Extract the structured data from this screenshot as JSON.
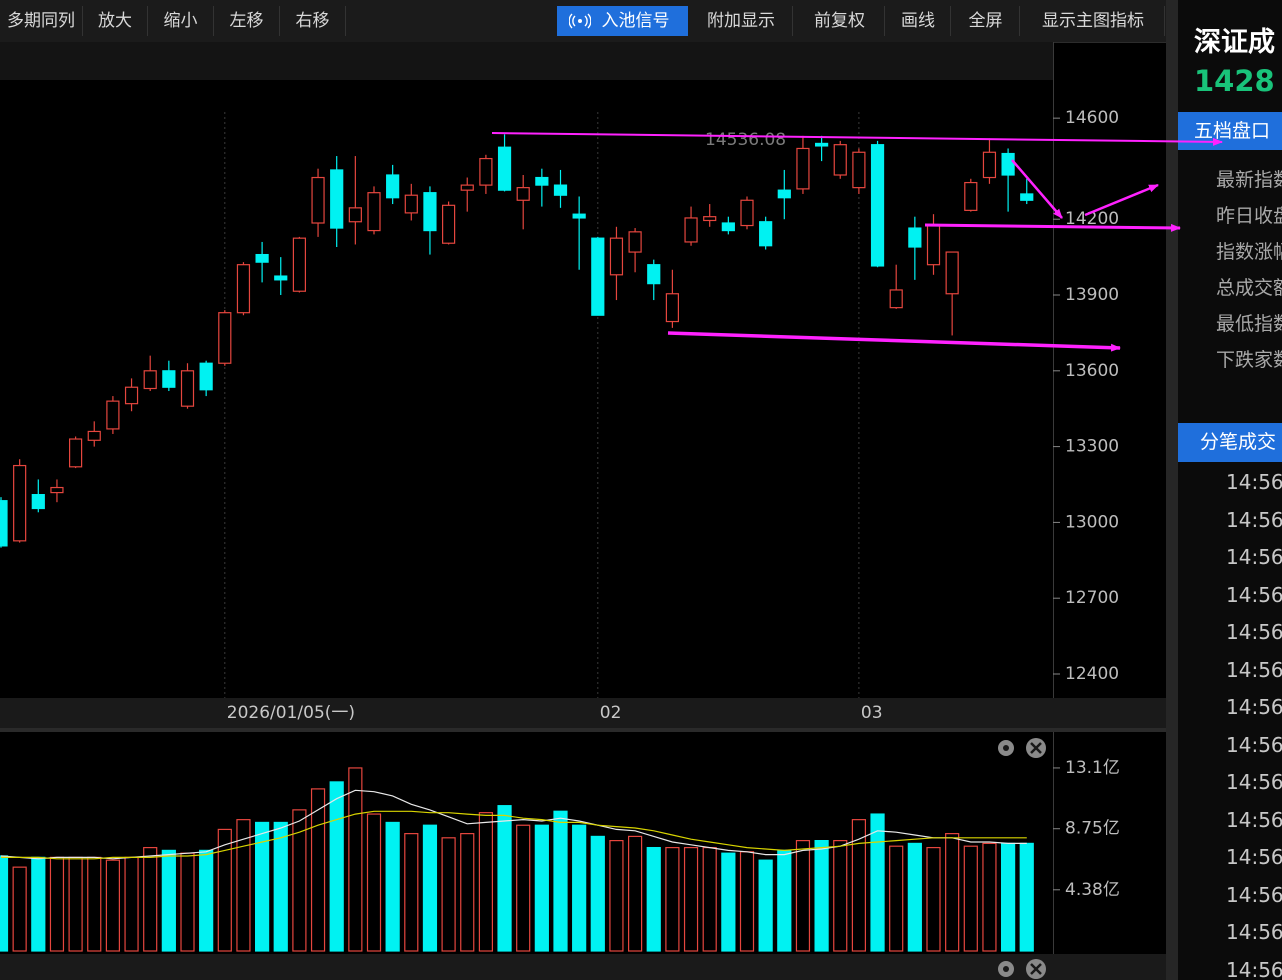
{
  "toolbar": {
    "buttons": [
      "多期同列",
      "放大",
      "缩小",
      "左移",
      "右移",
      "入池信号",
      "附加显示",
      "前复权",
      "画线",
      "全屏",
      "显示主图指标"
    ]
  },
  "panel": {
    "title": "深证成",
    "price": "1428",
    "tab_quote": "五档盘口",
    "labels": [
      "最新指数",
      "昨日收盘",
      "指数涨幅",
      "总成交额",
      "最低指数",
      "下跌家数"
    ],
    "tab_ticks": "分笔成交",
    "times": [
      "14:56",
      "14:56",
      "14:56",
      "14:56",
      "14:56",
      "14:56",
      "14:56",
      "14:56",
      "14:56",
      "14:56",
      "14:56",
      "14:56",
      "14:56",
      "14:56"
    ]
  },
  "chart_data": [
    {
      "type": "candlestick",
      "categories": [
        null,
        null,
        null,
        null,
        null,
        null,
        null,
        null,
        null,
        null,
        null,
        null,
        "2026/01/05(一)",
        null,
        null,
        null,
        null,
        null,
        null,
        null,
        null,
        null,
        null,
        null,
        null,
        null,
        null,
        null,
        null,
        null,
        null,
        null,
        "02",
        null,
        null,
        null,
        null,
        null,
        null,
        null,
        null,
        null,
        null,
        null,
        null,
        null,
        "03",
        null,
        null,
        null,
        null,
        null,
        null,
        null,
        null,
        null
      ],
      "open": [
        13086,
        12927,
        13110,
        13118,
        13220,
        13325,
        13370,
        13470,
        13530,
        13600,
        13460,
        13630,
        13630,
        13830,
        14060,
        13975,
        13915,
        14185,
        14395,
        14190,
        14155,
        14375,
        14225,
        14305,
        14105,
        14315,
        14335,
        14485,
        14275,
        14365,
        14335,
        14220,
        14125,
        13980,
        14070,
        14020,
        13795,
        14110,
        14195,
        14185,
        14175,
        14190,
        14315,
        14320,
        14500,
        14375,
        14325,
        14495,
        13850,
        14165,
        14020,
        13905,
        14235,
        14365,
        14460,
        14300
      ],
      "high": [
        13100,
        13250,
        13170,
        13170,
        13340,
        13400,
        13500,
        13570,
        13660,
        13640,
        13630,
        13640,
        13840,
        14030,
        14110,
        14050,
        14130,
        14400,
        14450,
        14450,
        14330,
        14415,
        14340,
        14330,
        14270,
        14365,
        14455,
        14536.08,
        14375,
        14400,
        14395,
        14290,
        14130,
        14170,
        14165,
        14040,
        14000,
        14250,
        14260,
        14210,
        14290,
        14210,
        14395,
        14530,
        14530,
        14510,
        14480,
        14510,
        14020,
        14210,
        14220,
        14070,
        14360,
        14520,
        14480,
        14360
      ],
      "low": [
        12900,
        12920,
        13040,
        13080,
        13215,
        13300,
        13350,
        13440,
        13520,
        13520,
        13450,
        13500,
        13620,
        13820,
        13950,
        13900,
        13910,
        14130,
        14090,
        14100,
        14140,
        14260,
        14195,
        14060,
        14100,
        14230,
        14300,
        14310,
        14160,
        14250,
        14245,
        14000,
        13820,
        13880,
        13990,
        13880,
        13770,
        14095,
        14170,
        14140,
        14160,
        14080,
        14200,
        14300,
        14430,
        14360,
        14300,
        14010,
        13845,
        13960,
        13980,
        13740,
        14230,
        14340,
        14230,
        14260
      ],
      "close": [
        12907,
        13225,
        13055,
        13138,
        13330,
        13360,
        13480,
        13535,
        13600,
        13535,
        13600,
        13525,
        13830,
        14020,
        14030,
        13960,
        14125,
        14365,
        14165,
        14245,
        14305,
        14285,
        14295,
        14155,
        14255,
        14335,
        14440,
        14315,
        14325,
        14335,
        14295,
        14205,
        13820,
        14125,
        14150,
        13945,
        13905,
        14205,
        14210,
        14155,
        14275,
        14095,
        14285,
        14480,
        14490,
        14495,
        14465,
        14015,
        13920,
        14090,
        14175,
        14070,
        14345,
        14465,
        14375,
        14275
      ],
      "up_color": "#e5463e",
      "down_color": "#00f2f2",
      "ylim": [
        12305,
        14751
      ],
      "yticks": [
        14600,
        14200,
        13900,
        13600,
        13300,
        13000,
        12700,
        12400
      ],
      "annotation": "14536.08"
    },
    {
      "type": "bar",
      "values": [
        6.8,
        6.0,
        6.7,
        6.7,
        6.7,
        6.7,
        6.5,
        6.7,
        7.4,
        7.2,
        7.0,
        7.2,
        8.7,
        9.4,
        9.2,
        9.2,
        10.1,
        11.6,
        12.1,
        13.1,
        9.8,
        9.2,
        8.4,
        9.0,
        8.1,
        8.4,
        9.9,
        10.4,
        9.0,
        9.0,
        10.0,
        9.0,
        8.2,
        7.9,
        8.2,
        7.4,
        7.4,
        7.4,
        7.4,
        7.0,
        7.1,
        6.5,
        7.2,
        7.9,
        7.9,
        7.9,
        9.4,
        9.8,
        7.5,
        7.7,
        7.4,
        8.4,
        7.5,
        7.7,
        7.7,
        7.7
      ],
      "lines": [
        {
          "color": "#e8e8e8",
          "values": [
            6.8,
            6.7,
            6.6,
            6.7,
            6.7,
            6.7,
            6.6,
            6.7,
            6.8,
            6.9,
            7.0,
            7.1,
            7.6,
            8.0,
            8.4,
            8.8,
            9.3,
            10.1,
            10.9,
            11.5,
            11.4,
            11.1,
            10.5,
            10.1,
            9.6,
            9.1,
            9.2,
            9.3,
            9.4,
            9.3,
            9.5,
            9.3,
            9.0,
            8.7,
            8.6,
            8.2,
            7.8,
            7.6,
            7.4,
            7.2,
            7.1,
            6.9,
            6.9,
            7.2,
            7.3,
            7.5,
            8.0,
            8.6,
            8.5,
            8.3,
            8.1,
            8.1,
            7.8,
            7.8,
            7.7,
            7.7
          ]
        },
        {
          "color": "#d8d400",
          "values": [
            6.7,
            6.7,
            6.7,
            6.6,
            6.6,
            6.6,
            6.7,
            6.7,
            6.7,
            6.8,
            6.8,
            6.9,
            7.2,
            7.5,
            7.8,
            8.1,
            8.5,
            9.0,
            9.4,
            9.8,
            10.0,
            10.0,
            10.0,
            9.9,
            9.9,
            9.8,
            9.7,
            9.7,
            9.5,
            9.4,
            9.2,
            9.2,
            9.0,
            8.9,
            8.8,
            8.6,
            8.3,
            8.0,
            7.8,
            7.6,
            7.4,
            7.3,
            7.2,
            7.3,
            7.4,
            7.5,
            7.7,
            7.8,
            7.9,
            8.0,
            8.1,
            8.1,
            8.1,
            8.1,
            8.1,
            8.1
          ]
        }
      ],
      "ylim": [
        0,
        15.6
      ],
      "yticks": [
        {
          "value": 13.1,
          "label": "13.1亿"
        },
        {
          "value": 8.75,
          "label": "8.75亿"
        },
        {
          "value": 4.38,
          "label": "4.38亿"
        }
      ]
    }
  ]
}
